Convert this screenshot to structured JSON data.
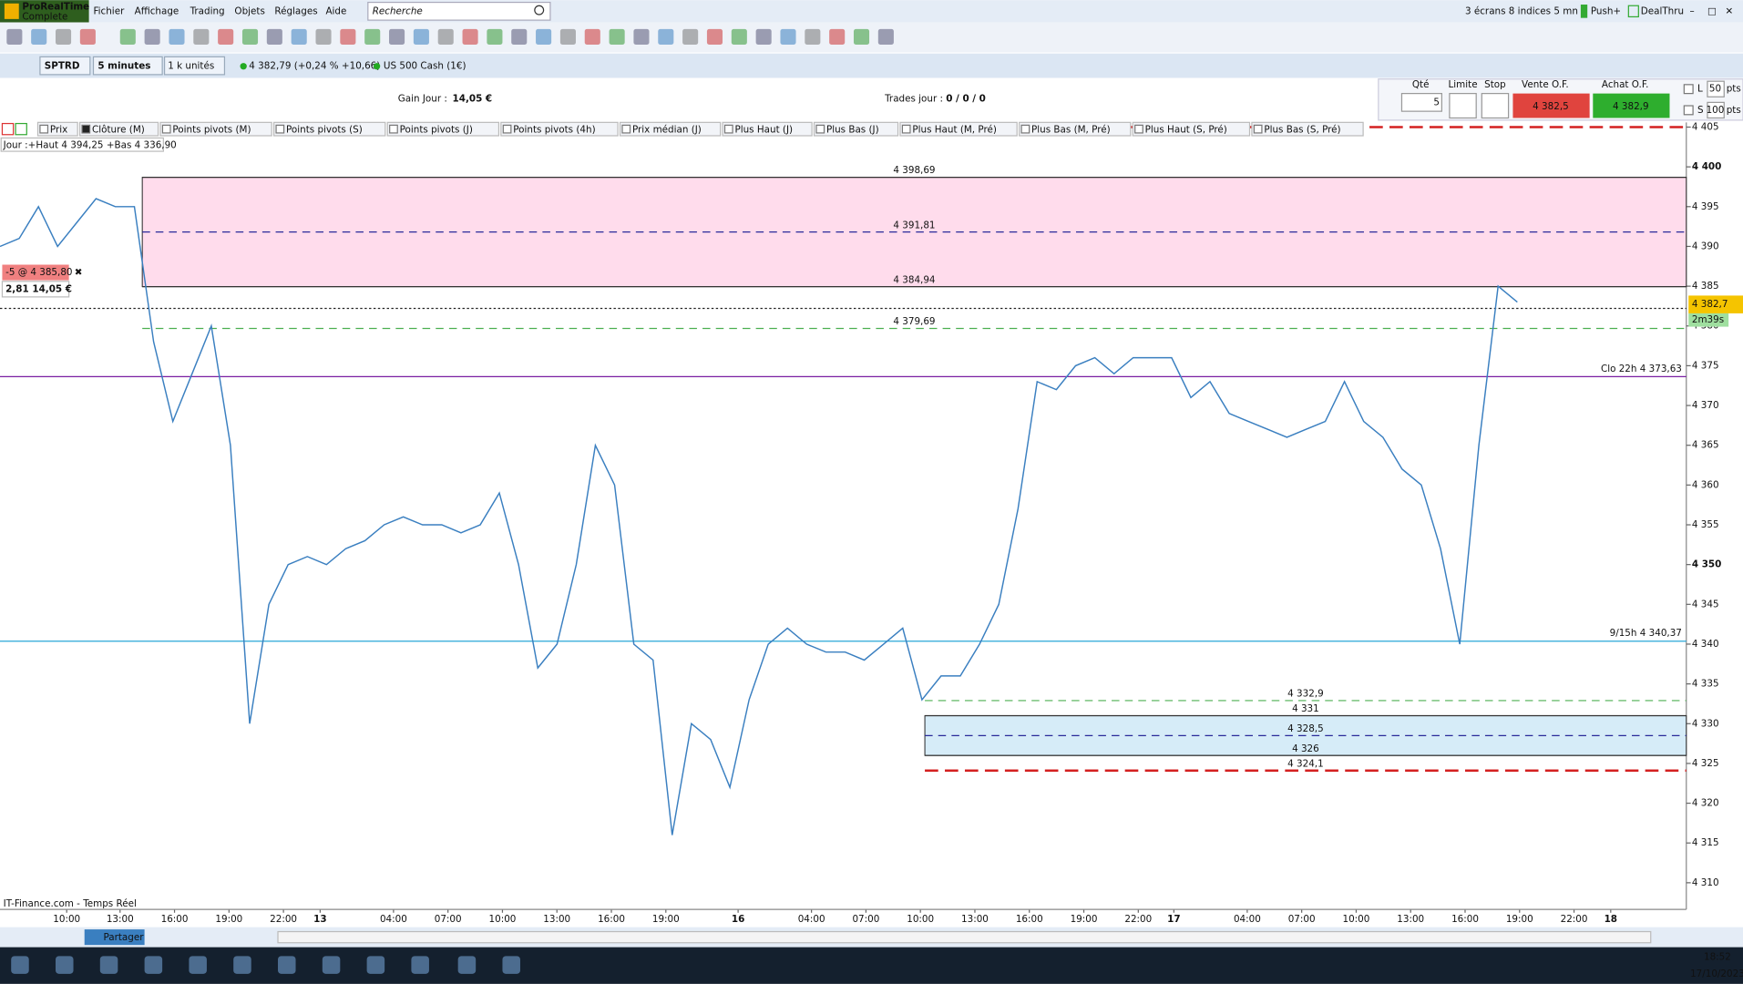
{
  "menu": {
    "logo": "ProRealTime",
    "edition": "Complete",
    "items": [
      "Fichier",
      "Affichage",
      "Trading",
      "Objets",
      "Réglages",
      "Aide"
    ],
    "search": "Recherche",
    "status": "3 écrans 8 indices 5 mn",
    "push": "Push+",
    "dealthru": "DealThru"
  },
  "instrument_bar": {
    "ticker": "SPTRD",
    "period": "5 minutes",
    "units": "1 k unités",
    "quote": "4 382,79 (+0,24 % +10,66)",
    "name": "US 500 Cash (1€)"
  },
  "summary": {
    "gain_label": "Gain Jour :",
    "gain": "14,05 €",
    "trades_label": "Trades jour :",
    "trades": "0 / 0 / 0"
  },
  "order": {
    "qty_label": "Qté",
    "qty": "5",
    "limit": "Limite",
    "stop": "Stop",
    "sell_label": "Vente O.F.",
    "sell": "4 382,5",
    "buy_label": "Achat O.F.",
    "buy": "4 382,9",
    "l": "L",
    "l_pts": "50",
    "s": "S",
    "s_pts": "100",
    "pts": "pts"
  },
  "tabs": [
    "Prix",
    "Clôture (M)",
    "Points pivots (M)",
    "Points pivots (S)",
    "Points pivots (J)",
    "Points pivots (4h)",
    "Prix médian (J)",
    "Plus Haut (J)",
    "Plus Bas (J)",
    "Plus Haut (M, Pré)",
    "Plus Bas (M, Pré)",
    "Plus Haut (S, Pré)",
    "Plus Bas (S, Pré)"
  ],
  "info": "Jour :+Haut 4 394,25 +Bas 4 336,90",
  "position": {
    "label": "-5 @ 4 385,80",
    "points": "2,81",
    "gain": "14,05 €"
  },
  "chart": {
    "type": "line",
    "color": "#3a7fc0",
    "ylim": [
      4306.65,
      4405.59
    ],
    "yticks": [
      {
        "value": 4405,
        "label": "4 405"
      },
      {
        "value": 4400,
        "label": "4 400"
      },
      {
        "value": 4395,
        "label": "4 395"
      },
      {
        "value": 4390,
        "label": "4 390"
      },
      {
        "value": 4385,
        "label": "4 385"
      },
      {
        "value": 4380,
        "label": "4 380"
      },
      {
        "value": 4375,
        "label": "4 375"
      },
      {
        "value": 4370,
        "label": "4 370"
      },
      {
        "value": 4365,
        "label": "4 365"
      },
      {
        "value": 4360,
        "label": "4 360"
      },
      {
        "value": 4355,
        "label": "4 355"
      },
      {
        "value": 4350,
        "label": "4 350"
      },
      {
        "value": 4345,
        "label": "4 345"
      },
      {
        "value": 4340,
        "label": "4 340"
      },
      {
        "value": 4335,
        "label": "4 335"
      },
      {
        "value": 4330,
        "label": "4 330"
      },
      {
        "value": 4325,
        "label": "4 325"
      },
      {
        "value": 4320,
        "label": "4 320"
      },
      {
        "value": 4315,
        "label": "4 315"
      },
      {
        "value": 4310,
        "label": "4 310"
      }
    ],
    "prices": [
      4390,
      4391,
      4395,
      4390,
      4393,
      4396,
      4395,
      4395,
      4378,
      4368,
      4374,
      4380,
      4365,
      4330,
      4345,
      4350,
      4351,
      4350,
      4352,
      4353,
      4355,
      4356,
      4355,
      4355,
      4354,
      4355,
      4359,
      4350,
      4337,
      4340,
      4350,
      4365,
      4360,
      4340,
      4338,
      4316,
      4330,
      4328,
      4322,
      4333,
      4340,
      4342,
      4340,
      4339,
      4339,
      4338,
      4340,
      4342,
      4333,
      4336,
      4336,
      4340,
      4345,
      4357,
      4373,
      4372,
      4375,
      4376,
      4374,
      4376,
      4376,
      4376,
      4371,
      4373,
      4369,
      4368,
      4367,
      4366,
      4367,
      4368,
      4373,
      4368,
      4366,
      4362,
      4360,
      4352,
      4340,
      4365,
      4385,
      4383
    ],
    "zones": [
      {
        "top": 4398.69,
        "bottom": 4384.94,
        "color": "#ffdcec"
      },
      {
        "top": 4331,
        "bottom": 4326,
        "color": "#d6ecf8"
      }
    ],
    "levels": [
      {
        "value": 4405,
        "color": "#d42020",
        "dash": "long"
      },
      {
        "value": 4398.69,
        "label": "4 398,69",
        "color": "#333333",
        "dash": "solid"
      },
      {
        "value": 4391.81,
        "label": "4 391,81",
        "color": "#2a2a9a",
        "dash": "short"
      },
      {
        "value": 4384.94,
        "label": "4 384,94",
        "color": "#333333",
        "dash": "solid"
      },
      {
        "value": 4382.2,
        "color": "#222222",
        "dash": "dot"
      },
      {
        "value": 4379.69,
        "label": "4 379,69",
        "color": "#4caf50",
        "dash": "short"
      },
      {
        "value": 4373.63,
        "label": "Clo 22h 4 373,63",
        "color": "#7a1fa2",
        "dash": "solid"
      },
      {
        "value": 4340.37,
        "label": "9/15h 4 340,37",
        "color": "#2aa7d8",
        "dash": "solid"
      },
      {
        "value": 4332.9,
        "label": "4 332,9",
        "color": "#4caf50",
        "dash": "short"
      },
      {
        "value": 4331,
        "label": "4 331",
        "color": "#333333",
        "dash": "solid"
      },
      {
        "value": 4328.5,
        "label": "4 328,5",
        "color": "#2a2a9a",
        "dash": "short"
      },
      {
        "value": 4326,
        "label": "4 326",
        "color": "#333333",
        "dash": "solid"
      },
      {
        "value": 4324.1,
        "label": "4 324,1",
        "color": "#d42020",
        "dash": "long"
      }
    ],
    "current": {
      "value": 4382.7,
      "label": "4 382,7"
    },
    "timer": "2m39s",
    "xlabels": [
      "10:00",
      "13:00",
      "16:00",
      "19:00",
      "22:00",
      "13",
      "04:00",
      "07:00",
      "10:00",
      "13:00",
      "16:00",
      "19:00",
      "16",
      "04:00",
      "07:00",
      "10:00",
      "13:00",
      "16:00",
      "19:00",
      "22:00",
      "17",
      "04:00",
      "07:00",
      "10:00",
      "13:00",
      "16:00",
      "19:00",
      "22:00",
      "18"
    ],
    "source": "IT-Finance.com - Temps Réel"
  },
  "taskbar": {
    "share": "Partager",
    "time": "18:52",
    "date": "17/10/2023"
  }
}
